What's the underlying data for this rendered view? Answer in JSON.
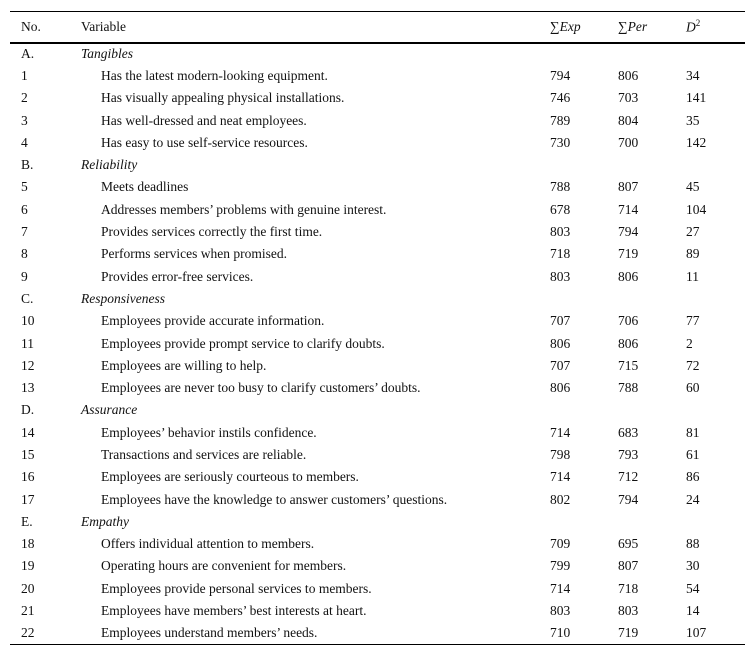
{
  "table": {
    "header": {
      "no": "No.",
      "variable": "Variable",
      "exp": {
        "sym": "∑",
        "text": "Exp"
      },
      "per": {
        "sym": "∑",
        "text": "Per"
      },
      "d2": {
        "base": "D",
        "sup": "2"
      }
    },
    "sections": [
      {
        "label": "A.",
        "name": "Tangibles",
        "items": [
          {
            "no": 1,
            "text": "Has the latest modern-looking equipment.",
            "exp": 794,
            "per": 806,
            "d2": 34
          },
          {
            "no": 2,
            "text": "Has visually appealing physical installations.",
            "exp": 746,
            "per": 703,
            "d2": 141
          },
          {
            "no": 3,
            "text": "Has well-dressed and neat employees.",
            "exp": 789,
            "per": 804,
            "d2": 35
          },
          {
            "no": 4,
            "text": "Has easy to use self-service resources.",
            "exp": 730,
            "per": 700,
            "d2": 142
          }
        ]
      },
      {
        "label": "B.",
        "name": "Reliability",
        "items": [
          {
            "no": 5,
            "text": "Meets deadlines",
            "exp": 788,
            "per": 807,
            "d2": 45
          },
          {
            "no": 6,
            "text": "Addresses members’ problems with genuine interest.",
            "exp": 678,
            "per": 714,
            "d2": 104
          },
          {
            "no": 7,
            "text": "Provides services correctly the first time.",
            "exp": 803,
            "per": 794,
            "d2": 27
          },
          {
            "no": 8,
            "text": "Performs services when promised.",
            "exp": 718,
            "per": 719,
            "d2": 89
          },
          {
            "no": 9,
            "text": "Provides error-free services.",
            "exp": 803,
            "per": 806,
            "d2": 11
          }
        ]
      },
      {
        "label": "C.",
        "name": "Responsiveness",
        "items": [
          {
            "no": 10,
            "text": "Employees provide accurate information.",
            "exp": 707,
            "per": 706,
            "d2": 77
          },
          {
            "no": 11,
            "text": "Employees provide prompt service to clarify doubts.",
            "exp": 806,
            "per": 806,
            "d2": 2
          },
          {
            "no": 12,
            "text": "Employees are willing to help.",
            "exp": 707,
            "per": 715,
            "d2": 72
          },
          {
            "no": 13,
            "text": "Employees are never too busy to clarify customers’ doubts.",
            "exp": 806,
            "per": 788,
            "d2": 60
          }
        ]
      },
      {
        "label": "D.",
        "name": "Assurance",
        "items": [
          {
            "no": 14,
            "text": "Employees’ behavior instils confidence.",
            "exp": 714,
            "per": 683,
            "d2": 81
          },
          {
            "no": 15,
            "text": "Transactions and services are reliable.",
            "exp": 798,
            "per": 793,
            "d2": 61
          },
          {
            "no": 16,
            "text": "Employees are seriously courteous to members.",
            "exp": 714,
            "per": 712,
            "d2": 86
          },
          {
            "no": 17,
            "text": "Employees have the knowledge to answer customers’ questions.",
            "exp": 802,
            "per": 794,
            "d2": 24
          }
        ]
      },
      {
        "label": "E.",
        "name": "Empathy",
        "items": [
          {
            "no": 18,
            "text": "Offers individual attention to members.",
            "exp": 709,
            "per": 695,
            "d2": 88
          },
          {
            "no": 19,
            "text": "Operating hours are convenient for members.",
            "exp": 799,
            "per": 807,
            "d2": 30
          },
          {
            "no": 20,
            "text": "Employees provide personal services to members.",
            "exp": 714,
            "per": 718,
            "d2": 54
          },
          {
            "no": 21,
            "text": "Employees have members’ best interests at heart.",
            "exp": 803,
            "per": 803,
            "d2": 14
          },
          {
            "no": 22,
            "text": "Employees understand members’ needs.",
            "exp": 710,
            "per": 719,
            "d2": 107
          }
        ]
      }
    ]
  }
}
